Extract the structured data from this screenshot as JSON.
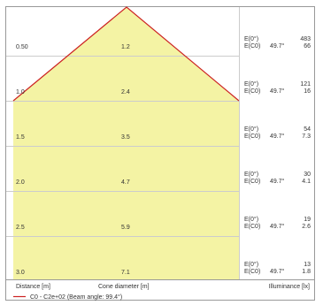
{
  "chart_data": {
    "type": "area",
    "title": "",
    "beam_angle_label": "49.7°",
    "xlabel": "Distance [m]",
    "middle_label": "Cone diameter [m]",
    "ylabel": "Illuminance [lx]",
    "legend": {
      "entries": [
        {
          "name": "C0 - C2e+02 (Beam angle: 99.4°)",
          "color": "#cc2222"
        }
      ],
      "position": "bottom-left"
    },
    "colors": {
      "fill": "#f4f3a4",
      "cone_line": "#cc2222",
      "grid": "#cccccc",
      "border": "#999999"
    },
    "e_labels": [
      "E(0°)",
      "E(C0)"
    ],
    "rows": [
      {
        "distance": "0.50",
        "diameter": "1.2",
        "e0": "483",
        "ec0": "66"
      },
      {
        "distance": "1.0",
        "diameter": "2.4",
        "e0": "121",
        "ec0": "16"
      },
      {
        "distance": "1.5",
        "diameter": "3.5",
        "e0": "54",
        "ec0": "7.3"
      },
      {
        "distance": "2.0",
        "diameter": "4.7",
        "e0": "30",
        "ec0": "4.1"
      },
      {
        "distance": "2.5",
        "diameter": "5.9",
        "e0": "19",
        "ec0": "2.6"
      },
      {
        "distance": "3.0",
        "diameter": "7.1",
        "e0": "13",
        "ec0": "1.8"
      }
    ]
  }
}
